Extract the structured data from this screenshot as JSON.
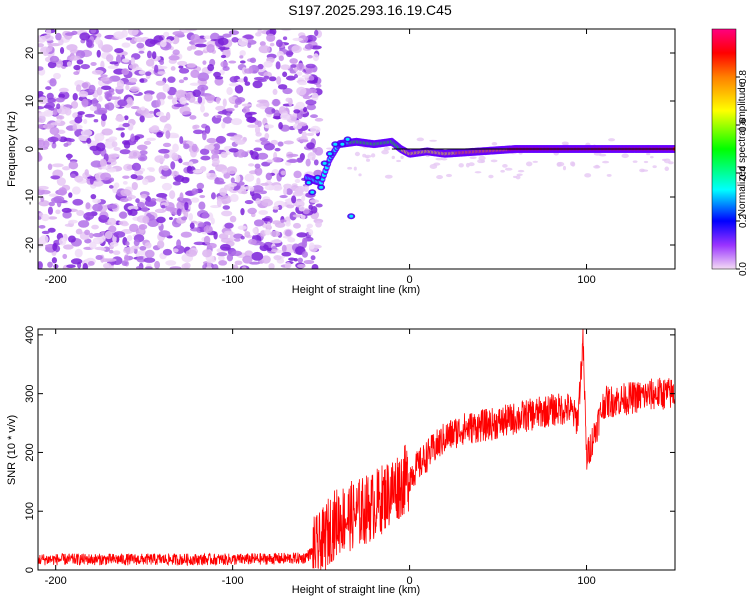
{
  "title": "S197.2025.293.16.19.C45",
  "chart_data": [
    {
      "type": "heatmap",
      "title": "S197.2025.293.16.19.C45",
      "xlabel": "Height of straight line (km)",
      "ylabel": "Frequency (Hz)",
      "xlim": [
        -210,
        150
      ],
      "ylim": [
        -25,
        25
      ],
      "xticks": [
        -200,
        -100,
        0,
        100
      ],
      "yticks": [
        -20,
        -10,
        0,
        10,
        20
      ],
      "colorbar": {
        "label": "Normalized spectral amplitude",
        "range": [
          0,
          1
        ],
        "ticks": [
          "0.0",
          "0.2",
          "0.4",
          "0.6",
          "0.8"
        ],
        "colors": [
          "#f4dcf4",
          "#8800ff",
          "#0000ff",
          "#00ffff",
          "#00ff00",
          "#ffff00",
          "#ff8000",
          "#ff0000",
          "#ff0080"
        ]
      },
      "description_points": {
        "noise_region_x": [
          -210,
          -55
        ],
        "signal_onset_x": -55,
        "signal_track": [
          {
            "x": -58,
            "y": -6
          },
          {
            "x": -50,
            "y": -7
          },
          {
            "x": -45,
            "y": -2
          },
          {
            "x": -40,
            "y": 1
          },
          {
            "x": -30,
            "y": 1.5
          },
          {
            "x": -20,
            "y": 1
          },
          {
            "x": -10,
            "y": 1.5
          },
          {
            "x": -5,
            "y": 0
          },
          {
            "x": 0,
            "y": -1
          },
          {
            "x": 10,
            "y": -0.5
          },
          {
            "x": 20,
            "y": -1
          },
          {
            "x": 40,
            "y": -0.5
          },
          {
            "x": 60,
            "y": 0
          },
          {
            "x": 90,
            "y": 0
          },
          {
            "x": 95,
            "y": 0
          },
          {
            "x": 100,
            "y": 0
          },
          {
            "x": 150,
            "y": 0
          }
        ],
        "fitted_line_y": 0
      }
    },
    {
      "type": "line",
      "xlabel": "Height of straight line (km)",
      "ylabel": "SNR (10 * v/v)",
      "xlim": [
        -210,
        150
      ],
      "ylim": [
        0,
        410
      ],
      "xticks": [
        -200,
        -100,
        0,
        100
      ],
      "yticks": [
        0,
        100,
        200,
        300,
        400
      ],
      "color": "#ff0000",
      "series": [
        {
          "x": [
            -210,
            -150,
            -100,
            -60,
            -50,
            -45,
            -40,
            -30,
            -20,
            -10,
            0,
            10,
            20,
            30,
            40,
            50,
            60,
            70,
            80,
            90,
            95,
            98,
            100,
            110,
            120,
            130,
            140,
            150
          ],
          "y": [
            18,
            18,
            18,
            20,
            40,
            70,
            85,
            95,
            110,
            135,
            160,
            195,
            225,
            240,
            245,
            250,
            258,
            265,
            272,
            275,
            255,
            390,
            190,
            285,
            290,
            295,
            300,
            300
          ]
        }
      ]
    }
  ]
}
